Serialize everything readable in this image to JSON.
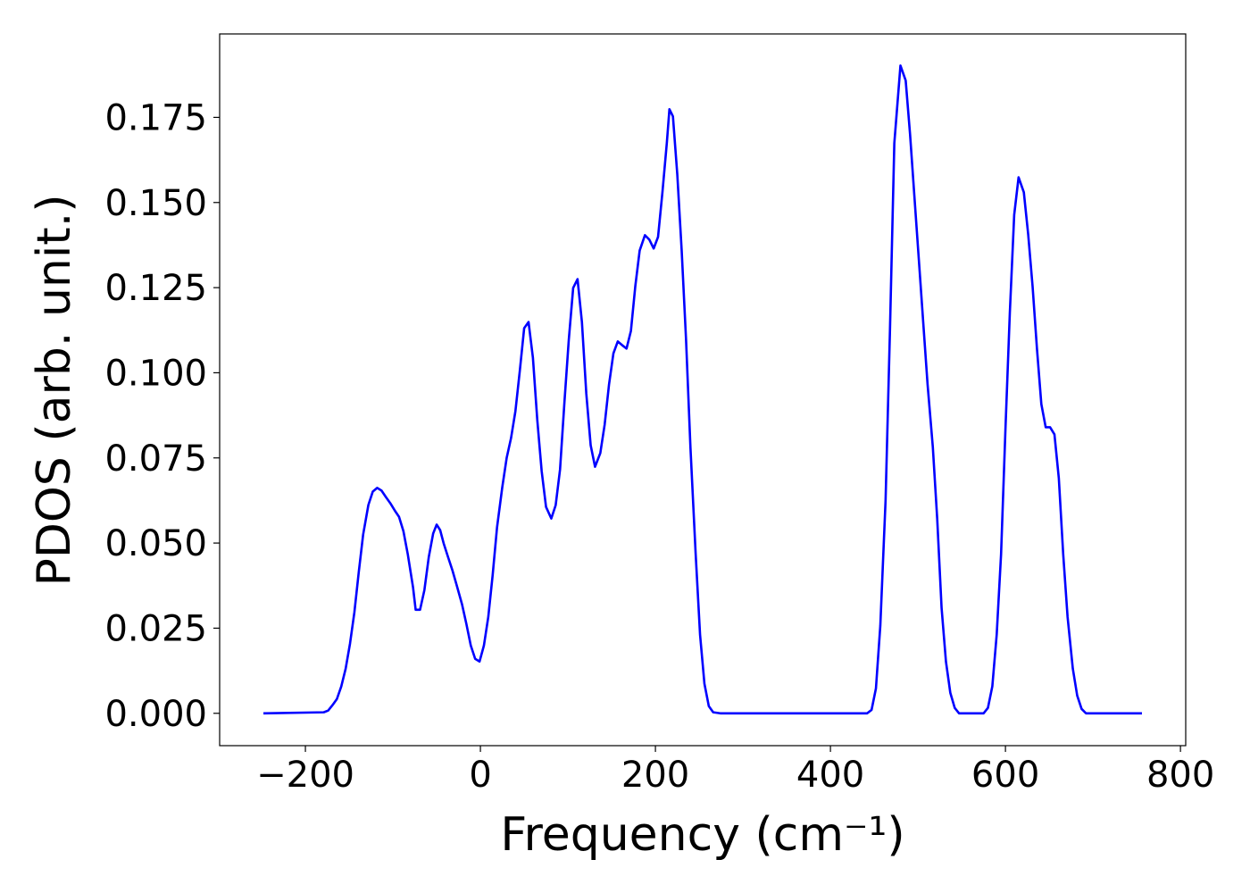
{
  "chart_data": {
    "type": "line",
    "xlabel": "Frequency (cm⁻¹)",
    "ylabel": "PDOS (arb. unit.)",
    "xlim": [
      -298,
      806
    ],
    "ylim": [
      -0.0095,
      0.1995
    ],
    "xticks": [
      {
        "value": -200,
        "label": "−200"
      },
      0,
      200,
      400,
      600,
      800
    ],
    "yticks": [
      {
        "value": 0,
        "label": "0.000"
      },
      {
        "value": 0.025,
        "label": "0.025"
      },
      {
        "value": 0.05,
        "label": "0.050"
      },
      {
        "value": 0.075,
        "label": "0.075"
      },
      {
        "value": 0.1,
        "label": "0.100"
      },
      {
        "value": 0.125,
        "label": "0.125"
      },
      {
        "value": 0.15,
        "label": "0.150"
      },
      {
        "value": 0.175,
        "label": "0.175"
      }
    ],
    "grid": false,
    "series": [
      {
        "color": "#0000ff",
        "x": [
          -248,
          -179,
          -174,
          -169,
          -164,
          -159,
          -154,
          -149,
          -144,
          -139,
          -134,
          -128,
          -123,
          -118,
          -113,
          -108,
          -103,
          -98,
          -93,
          -88,
          -83,
          -77,
          -74,
          -69,
          -64,
          -59,
          -54,
          -50,
          -46,
          -42,
          -37,
          -32,
          -27,
          -21,
          -16,
          -11,
          -6,
          -1,
          4,
          9,
          14,
          19,
          25,
          30,
          35,
          40,
          45,
          50,
          55,
          60,
          65,
          70,
          75,
          81,
          86,
          91,
          96,
          101,
          106,
          111,
          116,
          121,
          126,
          131,
          137,
          142,
          147,
          152,
          157,
          162,
          167,
          172,
          177,
          182,
          188,
          193,
          198,
          203,
          208,
          213,
          216,
          220,
          225,
          230,
          235,
          240,
          246,
          251,
          256,
          261,
          266,
          274,
          442,
          447,
          452,
          457,
          463,
          468,
          473,
          480,
          486,
          491,
          496,
          501,
          506,
          511,
          517,
          522,
          527,
          532,
          537,
          542,
          547,
          575,
          580,
          585,
          590,
          595,
          600,
          605,
          610,
          615,
          621,
          626,
          631,
          636,
          641,
          646,
          651,
          656,
          661,
          666,
          671,
          677,
          682,
          687,
          692,
          756
        ],
        "values": [
          0,
          0.0003,
          0.0008,
          0.0024,
          0.0042,
          0.0079,
          0.0131,
          0.0205,
          0.0297,
          0.0415,
          0.0525,
          0.0612,
          0.0651,
          0.0662,
          0.0654,
          0.0635,
          0.0617,
          0.0596,
          0.0577,
          0.0535,
          0.0467,
          0.037,
          0.0304,
          0.0304,
          0.0362,
          0.0459,
          0.0528,
          0.0554,
          0.0538,
          0.0499,
          0.0459,
          0.042,
          0.0375,
          0.032,
          0.0262,
          0.0199,
          0.016,
          0.0152,
          0.0199,
          0.0283,
          0.0406,
          0.0546,
          0.0664,
          0.075,
          0.0808,
          0.0887,
          0.1005,
          0.1131,
          0.1149,
          0.1044,
          0.0861,
          0.0711,
          0.0606,
          0.0572,
          0.0611,
          0.0716,
          0.0913,
          0.1097,
          0.1249,
          0.1275,
          0.1149,
          0.0939,
          0.0787,
          0.0724,
          0.0764,
          0.0848,
          0.0966,
          0.1057,
          0.1092,
          0.1081,
          0.1071,
          0.1123,
          0.1254,
          0.1359,
          0.1404,
          0.1391,
          0.1365,
          0.1399,
          0.153,
          0.1674,
          0.1774,
          0.1753,
          0.1582,
          0.1359,
          0.1097,
          0.0782,
          0.0467,
          0.0231,
          0.0087,
          0.0021,
          0.0003,
          0,
          0,
          0.001,
          0.0073,
          0.0257,
          0.0625,
          0.1123,
          0.1674,
          0.1902,
          0.1858,
          0.17,
          0.1516,
          0.1333,
          0.1149,
          0.0966,
          0.0782,
          0.0572,
          0.031,
          0.0152,
          0.006,
          0.0016,
          0,
          0,
          0.0016,
          0.0079,
          0.0231,
          0.0467,
          0.0835,
          0.1176,
          0.1464,
          0.1574,
          0.153,
          0.1406,
          0.1254,
          0.1071,
          0.0908,
          0.084,
          0.084,
          0.0819,
          0.069,
          0.0467,
          0.0283,
          0.0131,
          0.0052,
          0.0013,
          0,
          0
        ]
      }
    ]
  }
}
